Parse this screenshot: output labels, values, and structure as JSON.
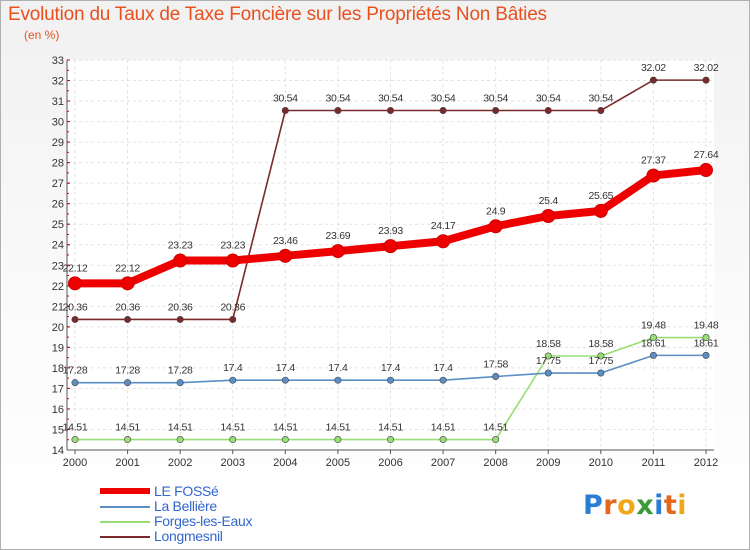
{
  "title": "Evolution du Taux de Taxe Foncière sur les Propriétés Non Bâties",
  "unit": "(en %)",
  "chart_data": {
    "type": "line",
    "title": "Evolution du Taux de Taxe Foncière sur les Propriétés Non Bâties",
    "ylabel": "(en %)",
    "xlabel": "",
    "ylim": [
      14,
      33
    ],
    "grid": true,
    "x": [
      "2000",
      "2001",
      "2002",
      "2003",
      "2004",
      "2005",
      "2006",
      "2007",
      "2008",
      "2009",
      "2010",
      "2011",
      "2012"
    ],
    "yticks": [
      "14",
      "15",
      "16",
      "17",
      "18",
      "19",
      "20",
      "21",
      "22",
      "23",
      "24",
      "25",
      "26",
      "27",
      "28",
      "29",
      "30",
      "31",
      "32",
      "33"
    ],
    "legend_position": "bottom-left",
    "series": [
      {
        "name": "LE FOSSé",
        "color": "#ee0000",
        "values": [
          22.12,
          22.12,
          23.23,
          23.23,
          23.46,
          23.69,
          23.93,
          24.17,
          24.9,
          25.4,
          25.65,
          27.37,
          27.64
        ],
        "labels": [
          "22.12",
          "22.12",
          "23.23",
          "23.23",
          "23.46",
          "23.69",
          "23.93",
          "24.17",
          "24.9",
          "25.4",
          "25.65",
          "27.37",
          "27.64"
        ]
      },
      {
        "name": "La Bellière",
        "color": "#5b8ec4",
        "values": [
          17.28,
          17.28,
          17.28,
          17.4,
          17.4,
          17.4,
          17.4,
          17.4,
          17.58,
          17.75,
          17.75,
          18.61,
          18.61
        ],
        "labels": [
          "17.28",
          "17.28",
          "17.28",
          "17.4",
          "17.4",
          "17.4",
          "17.4",
          "17.4",
          "17.58",
          "17.75",
          "17.75",
          "18.61",
          "18.61"
        ]
      },
      {
        "name": "Forges-les-Eaux",
        "color": "#99dd77",
        "values": [
          14.51,
          14.51,
          14.51,
          14.51,
          14.51,
          14.51,
          14.51,
          14.51,
          14.51,
          18.58,
          18.58,
          19.48,
          19.48
        ],
        "labels": [
          "14.51",
          "14.51",
          "14.51",
          "14.51",
          "14.51",
          "14.51",
          "14.51",
          "14.51",
          "14.51",
          "18.58",
          "18.58",
          "19.48",
          "19.48"
        ]
      },
      {
        "name": "Longmesnil",
        "color": "#7a2a2a",
        "values": [
          20.36,
          20.36,
          20.36,
          20.36,
          30.54,
          30.54,
          30.54,
          30.54,
          30.54,
          30.54,
          30.54,
          32.02,
          32.02
        ],
        "labels": [
          "20.36",
          "20.36",
          "20.36",
          "20.36",
          "30.54",
          "30.54",
          "30.54",
          "30.54",
          "30.54",
          "30.54",
          "30.54",
          "32.02",
          "32.02"
        ]
      }
    ]
  },
  "logo": {
    "letters": [
      "P",
      "r",
      "o",
      "x",
      "i",
      "t",
      "i"
    ],
    "colors": [
      "#2a7fd4",
      "#e4671c",
      "#f0a81b",
      "#3a9a3a",
      "#2a7fd4",
      "#e4671c",
      "#f0a81b"
    ]
  }
}
